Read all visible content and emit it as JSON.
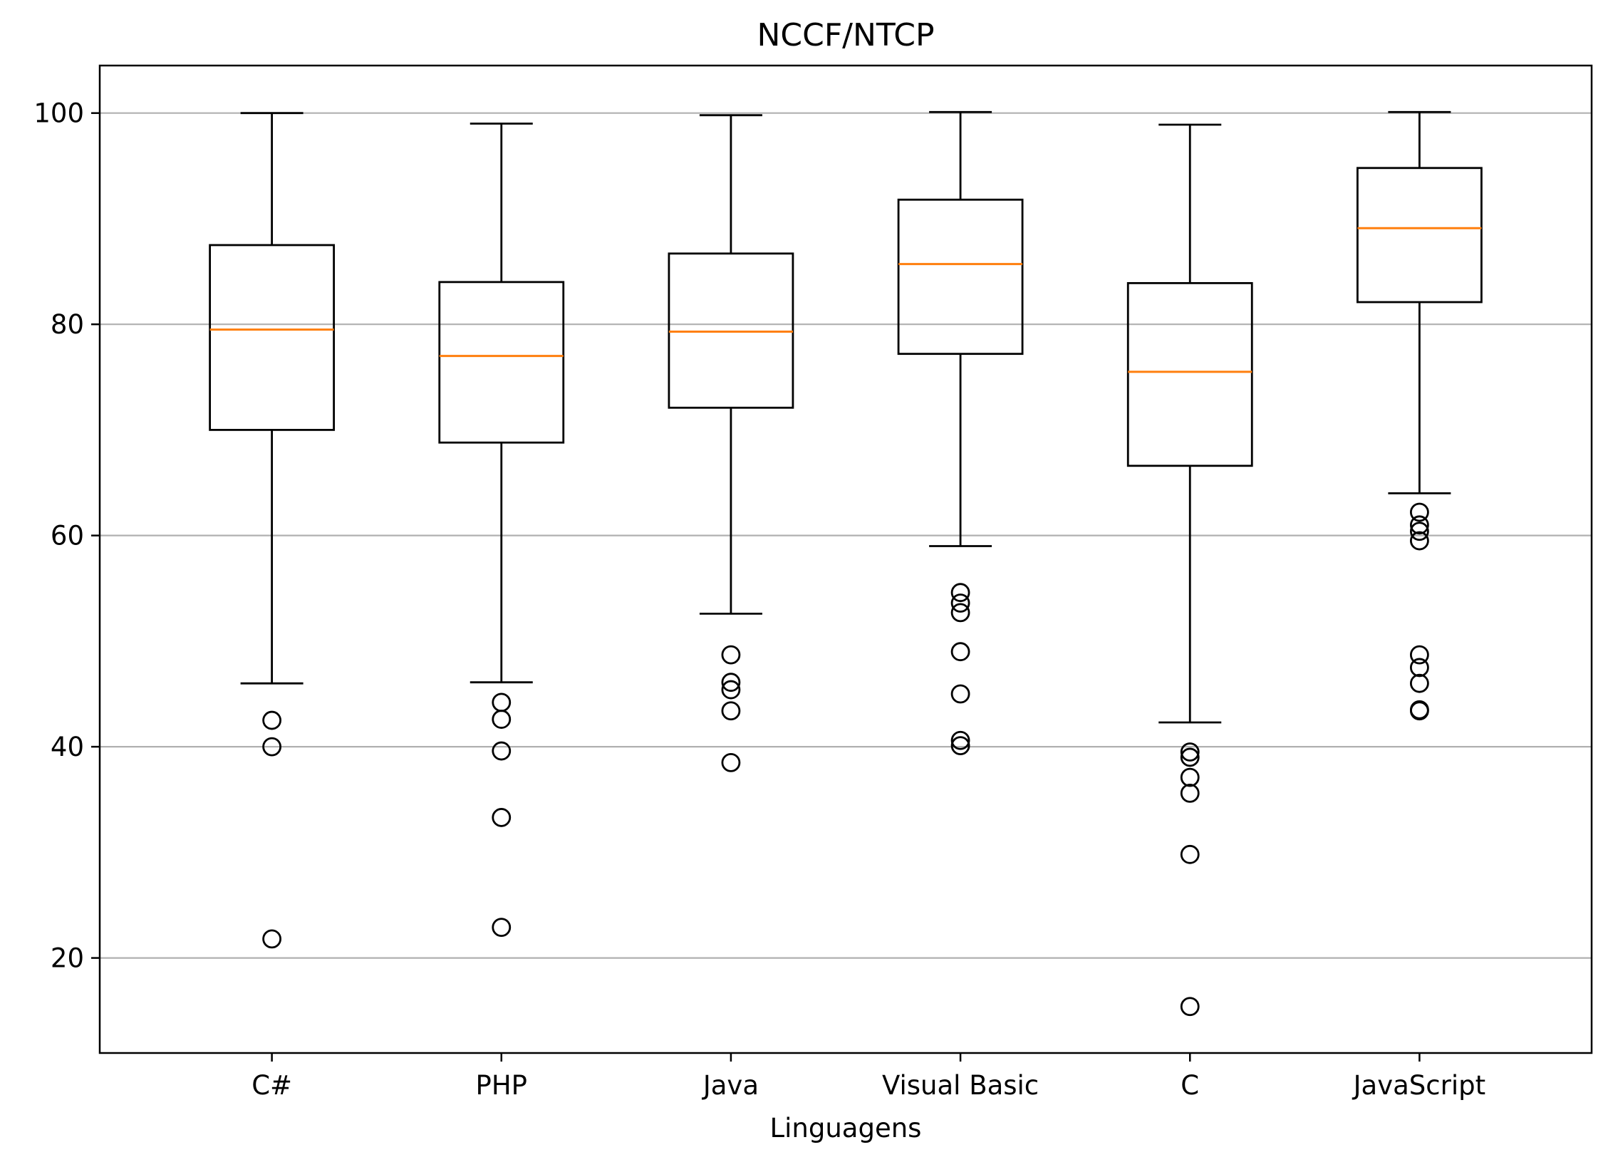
{
  "chart_data": {
    "type": "boxplot",
    "title": "NCCF/NTCP",
    "xlabel": "Linguagens",
    "ylabel": "",
    "ylim": [
      11,
      104.5
    ],
    "yticks": [
      20,
      40,
      60,
      80,
      100
    ],
    "grid": "y-axis",
    "categories": [
      "C#",
      "PHP",
      "Java",
      "Visual Basic",
      "C",
      "JavaScript"
    ],
    "boxes": [
      {
        "label": "C#",
        "whisker_low": 46,
        "q1": 70,
        "median": 79.5,
        "q3": 87.5,
        "whisker_high": 100,
        "outliers": [
          42.5,
          40,
          21.8
        ]
      },
      {
        "label": "PHP",
        "whisker_low": 46.1,
        "q1": 68.8,
        "median": 77,
        "q3": 84,
        "whisker_high": 99,
        "outliers": [
          44.2,
          42.6,
          39.6,
          33.3,
          22.9
        ]
      },
      {
        "label": "Java",
        "whisker_low": 52.6,
        "q1": 72.1,
        "median": 79.3,
        "q3": 86.7,
        "whisker_high": 99.8,
        "outliers": [
          48.7,
          46.1,
          45.4,
          43.4,
          38.5
        ]
      },
      {
        "label": "Visual Basic",
        "whisker_low": 59,
        "q1": 77.2,
        "median": 85.7,
        "q3": 91.8,
        "whisker_high": 100.1,
        "outliers": [
          54.6,
          53.6,
          52.7,
          49,
          45,
          40.6,
          40.1
        ]
      },
      {
        "label": "C",
        "whisker_low": 42.3,
        "q1": 66.6,
        "median": 75.5,
        "q3": 83.9,
        "whisker_high": 98.9,
        "outliers": [
          39.5,
          39,
          37.1,
          35.6,
          29.8,
          15.4
        ]
      },
      {
        "label": "JavaScript",
        "whisker_low": 64,
        "q1": 82.1,
        "median": 89.1,
        "q3": 94.8,
        "whisker_high": 100.1,
        "outliers": [
          62.2,
          61,
          60.4,
          59.5,
          48.7,
          47.5,
          46,
          43.5,
          43.4
        ]
      }
    ],
    "colors": {
      "box": "#000000",
      "median": "#ff7f0e",
      "grid": "#b0b0b0",
      "background": "#ffffff"
    }
  }
}
